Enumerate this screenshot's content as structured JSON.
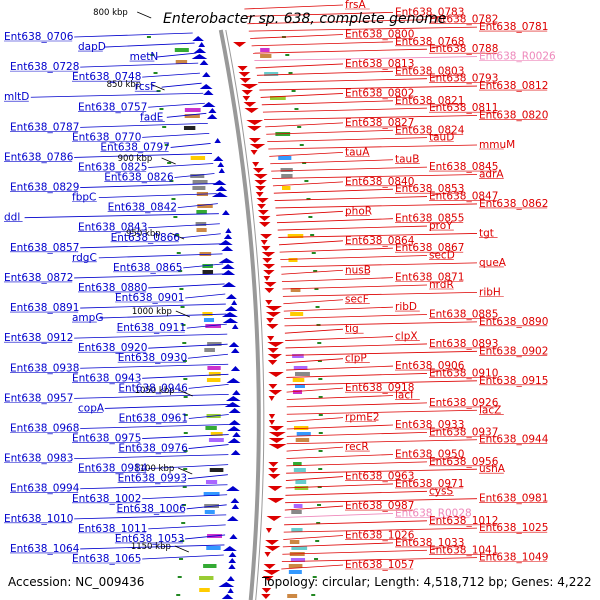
{
  "title": "Enterobacter sp. 638, complete genome",
  "footer": {
    "accession": "Accession: NC_009436",
    "topology": "Topology: circular; Length: 4,518,712 bp; Genes: 4,222"
  },
  "colors": {
    "forward_strand": "#0000cc",
    "reverse_strand": "#dd0000",
    "rna": "#ee88bb",
    "backbone": "#999999",
    "tick": "#228822"
  },
  "ticks": [
    {
      "label": "800 kbp",
      "kbp": 800
    },
    {
      "label": "850 kbp",
      "kbp": 850
    },
    {
      "label": "900 kbp",
      "kbp": 900
    },
    {
      "label": "950 kbp",
      "kbp": 950
    },
    {
      "label": "1000 kbp",
      "kbp": 1000
    },
    {
      "label": "1050 kbp",
      "kbp": 1050
    },
    {
      "label": "1100 kbp",
      "kbp": 1100
    },
    {
      "label": "1150 kbp",
      "kbp": 1150
    }
  ],
  "left_labels": [
    "Ent638_0706",
    "dapD",
    "metN",
    "Ent638_0728",
    "Ent638_0748",
    "rcsF",
    "mltD",
    "Ent638_0757",
    "fadE",
    "Ent638_0787",
    "Ent638_0770",
    "Ent638_0797",
    "Ent638_0786",
    "Ent638_0825",
    "Ent638_0826",
    "Ent638_0829",
    "fbpC",
    "Ent638_0842",
    "ddl",
    "Ent638_0843",
    "Ent638_0866",
    "Ent638_0857",
    "rdgC",
    "Ent638_0865",
    "Ent638_0872",
    "Ent638_0880",
    "Ent638_0901",
    "Ent638_0891",
    "ampG",
    "Ent638_0911",
    "Ent638_0912",
    "Ent638_0920",
    "Ent638_0930",
    "Ent638_0938",
    "Ent638_0943",
    "Ent638_0946",
    "Ent638_0957",
    "copA",
    "Ent638_0961",
    "Ent638_0968",
    "Ent638_0975",
    "Ent638_0976",
    "Ent638_0983",
    "Ent638_0984",
    "Ent638_0993",
    "Ent638_0994",
    "Ent638_1002",
    "Ent638_1006",
    "Ent638_1010",
    "Ent638_1011",
    "Ent638_1053",
    "Ent638_1064",
    "Ent638_1065"
  ],
  "right_labels": [
    "frsA",
    "Ent638_0783",
    "Ent638_0782",
    "Ent638_0781",
    "Ent638_0800",
    "Ent638_0768",
    "Ent638_0788",
    "Ent638_R0026",
    "Ent638_0813",
    "Ent638_0803",
    "Ent638_0793",
    "Ent638_0812",
    "Ent638_0802",
    "Ent638_0821",
    "Ent638_0811",
    "Ent638_0820",
    "Ent638_0827",
    "Ent638_0824",
    "tauD",
    "mmuM",
    "tauA",
    "tauB",
    "Ent638_0845",
    "adrA",
    "Ent638_0840",
    "Ent638_0853",
    "Ent638_0847",
    "Ent638_0862",
    "phoR",
    "Ent638_0855",
    "proY",
    "tgt",
    "Ent638_0864",
    "Ent638_0867",
    "secD",
    "queA",
    "nusB",
    "Ent638_0871",
    "nrdR",
    "ribH",
    "secF",
    "ribD",
    "Ent638_0885",
    "Ent638_0890",
    "tig",
    "clpX",
    "Ent638_0893",
    "Ent638_0902",
    "clpP",
    "Ent638_0906",
    "Ent638_0910",
    "Ent638_0915",
    "Ent638_0918",
    "lacI",
    "Ent638_0926",
    "lacZ",
    "rpmE2",
    "Ent638_0933",
    "Ent638_0937",
    "Ent638_0944",
    "recR",
    "Ent638_0950",
    "Ent638_0956",
    "ushA",
    "Ent638_0963",
    "Ent638_0971",
    "cysS",
    "Ent638_0981",
    "Ent638_0987",
    "Ent638_R0028",
    "Ent638_1012",
    "Ent638_1025",
    "Ent638_1026",
    "Ent638_1033",
    "Ent638_1041",
    "Ent638_1049",
    "Ent638_1057"
  ]
}
